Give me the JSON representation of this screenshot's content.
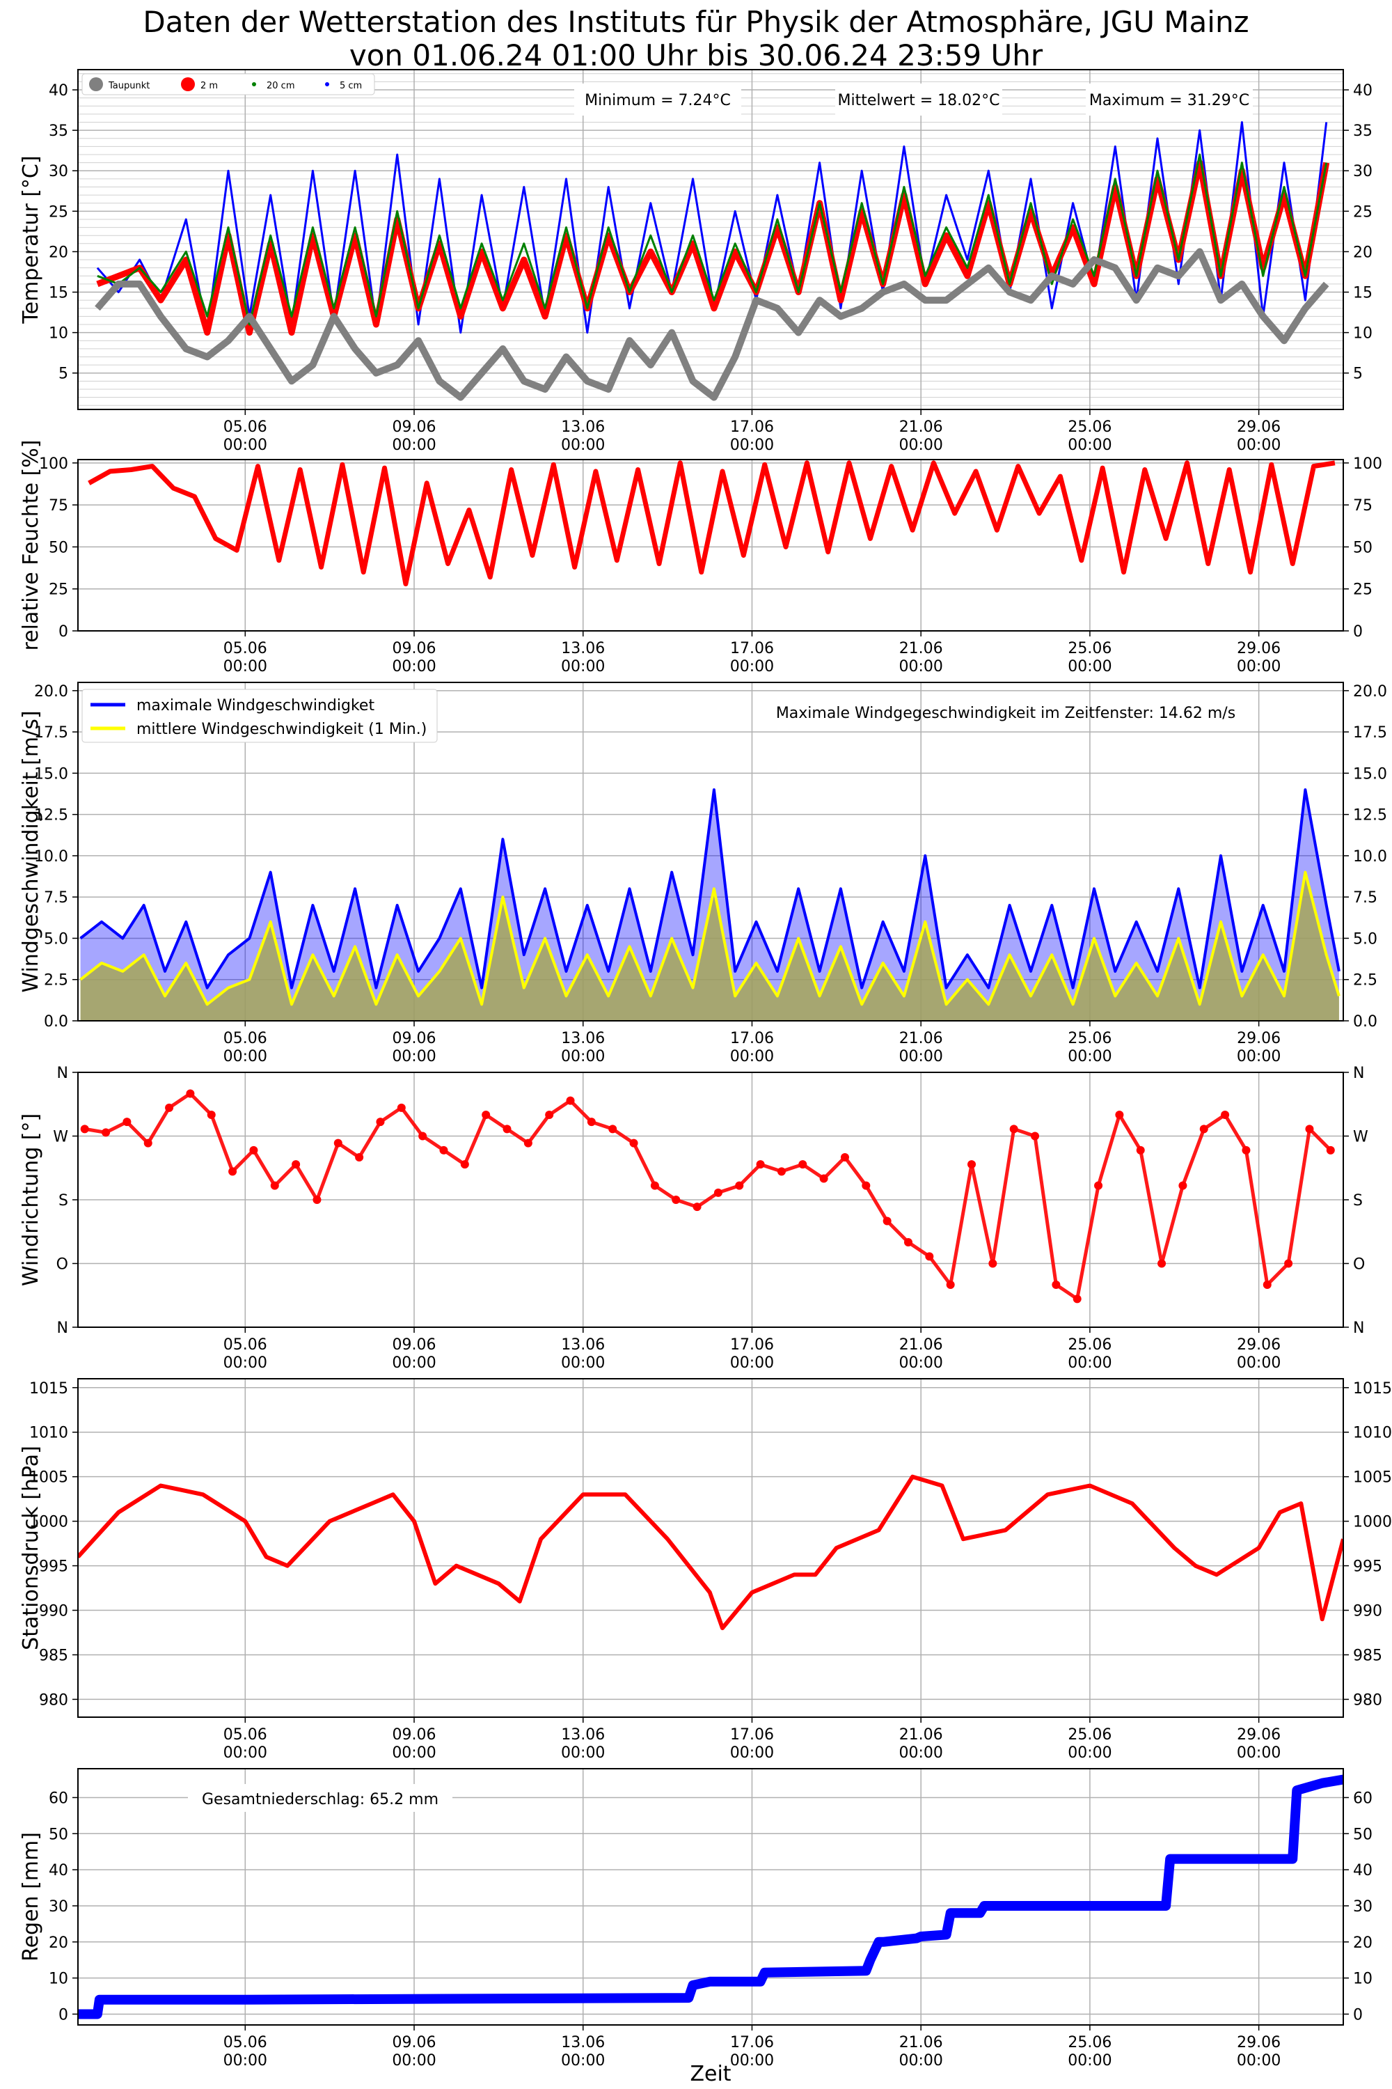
{
  "title": {
    "line1": "Daten der Wetterstation des Instituts für Physik der Atmosphäre, JGU Mainz",
    "line2": "von 01.06.24 01:00 Uhr bis 30.06.24 23:59 Uhr"
  },
  "xlabel": "Zeit",
  "x_ticks": [
    "05.06\n00:00",
    "09.06\n00:00",
    "13.06\n00:00",
    "17.06\n00:00",
    "21.06\n00:00",
    "25.06\n00:00",
    "29.06\n00:00"
  ],
  "x_tick_days": [
    4,
    8,
    12,
    16,
    20,
    24,
    28
  ],
  "x_range_days": [
    0.04,
    30.0
  ],
  "chart_data": [
    {
      "id": "temperature",
      "type": "scatter",
      "ylabel": "Temperatur [°C]",
      "ylim": [
        0.5,
        42.5
      ],
      "yticks": [
        5,
        10,
        15,
        20,
        25,
        30,
        35,
        40
      ],
      "legend": [
        "Taupunkt",
        "2 m",
        "20 cm",
        "5 cm"
      ],
      "annotations": [
        "Minimum = 7.24°C",
        "Mittelwert = 18.02°C",
        "Maximum = 31.29°C"
      ],
      "x_days": [
        0.5,
        1,
        1.5,
        2,
        2.6,
        3.1,
        3.6,
        4.1,
        4.6,
        5.1,
        5.6,
        6.1,
        6.6,
        7.1,
        7.6,
        8.1,
        8.6,
        9.1,
        9.6,
        10.1,
        10.6,
        11.1,
        11.6,
        12.1,
        12.6,
        13.1,
        13.6,
        14.1,
        14.6,
        15.1,
        15.6,
        16.1,
        16.6,
        17.1,
        17.6,
        18.1,
        18.6,
        19.1,
        19.6,
        20.1,
        20.6,
        21.1,
        21.6,
        22.1,
        22.6,
        23.1,
        23.6,
        24.1,
        24.6,
        25.1,
        25.6,
        26.1,
        26.6,
        27.1,
        27.6,
        28.1,
        28.6,
        29.1,
        29.6
      ],
      "series": [
        {
          "name": "5 cm",
          "color": "#0000ff",
          "values": [
            18,
            15,
            19,
            14,
            24,
            10,
            30,
            12,
            27,
            11,
            30,
            12,
            30,
            11,
            32,
            11,
            29,
            10,
            27,
            13,
            28,
            12,
            29,
            10,
            28,
            13,
            26,
            15,
            29,
            13,
            25,
            14,
            27,
            15,
            31,
            13,
            30,
            15,
            33,
            16,
            27,
            19,
            30,
            15,
            29,
            13,
            26,
            16,
            33,
            14,
            34,
            16,
            35,
            14,
            36,
            12,
            31,
            14,
            36
          ]
        },
        {
          "name": "2 m",
          "color": "#ff0000",
          "values": [
            16,
            17,
            18,
            14,
            19,
            10,
            22,
            10,
            21,
            10,
            22,
            12,
            22,
            11,
            24,
            13,
            21,
            12,
            20,
            13,
            19,
            12,
            22,
            13,
            22,
            15,
            20,
            15,
            21,
            13,
            20,
            15,
            23,
            15,
            26,
            14,
            25,
            16,
            27,
            16,
            22,
            17,
            26,
            16,
            25,
            17,
            23,
            16,
            28,
            17,
            29,
            19,
            31,
            17,
            30,
            18,
            27,
            17,
            31
          ]
        },
        {
          "name": "20 cm",
          "color": "#008000",
          "values": [
            17,
            16,
            18,
            15,
            20,
            12,
            23,
            11,
            22,
            12,
            23,
            13,
            23,
            12,
            25,
            13,
            22,
            13,
            21,
            14,
            21,
            13,
            23,
            13,
            23,
            15,
            22,
            15,
            22,
            14,
            21,
            15,
            24,
            15,
            26,
            15,
            26,
            16,
            28,
            17,
            23,
            18,
            27,
            16,
            26,
            16,
            24,
            17,
            29,
            17,
            30,
            19,
            32,
            17,
            31,
            17,
            28,
            17,
            31
          ]
        },
        {
          "name": "Taupunkt",
          "color": "#808080",
          "values": [
            13,
            16,
            16,
            12,
            8,
            7,
            9,
            12,
            8,
            4,
            6,
            12,
            8,
            5,
            6,
            9,
            4,
            2,
            5,
            8,
            4,
            3,
            7,
            4,
            3,
            9,
            6,
            10,
            4,
            2,
            7,
            14,
            13,
            10,
            14,
            12,
            13,
            15,
            16,
            14,
            14,
            16,
            18,
            15,
            14,
            17,
            16,
            19,
            18,
            14,
            18,
            17,
            20,
            14,
            16,
            12,
            9,
            13,
            16
          ]
        }
      ]
    },
    {
      "id": "humidity",
      "type": "scatter",
      "ylabel": "relative Feuchte [%]",
      "ylim": [
        0,
        102
      ],
      "yticks": [
        0,
        25,
        50,
        75,
        100
      ],
      "x_days": [
        0.3,
        0.8,
        1.3,
        1.8,
        2.3,
        2.8,
        3.3,
        3.8,
        4.3,
        4.8,
        5.3,
        5.8,
        6.3,
        6.8,
        7.3,
        7.8,
        8.3,
        8.8,
        9.3,
        9.8,
        10.3,
        10.8,
        11.3,
        11.8,
        12.3,
        12.8,
        13.3,
        13.8,
        14.3,
        14.8,
        15.3,
        15.8,
        16.3,
        16.8,
        17.3,
        17.8,
        18.3,
        18.8,
        19.3,
        19.8,
        20.3,
        20.8,
        21.3,
        21.8,
        22.3,
        22.8,
        23.3,
        23.8,
        24.3,
        24.8,
        25.3,
        25.8,
        26.3,
        26.8,
        27.3,
        27.8,
        28.3,
        28.8,
        29.3,
        29.8
      ],
      "series": [
        {
          "name": "",
          "color": "#ff0000",
          "values": [
            88,
            95,
            96,
            98,
            85,
            80,
            55,
            48,
            98,
            42,
            96,
            38,
            99,
            35,
            97,
            28,
            88,
            40,
            72,
            32,
            96,
            45,
            99,
            38,
            95,
            42,
            96,
            40,
            100,
            35,
            95,
            45,
            99,
            50,
            100,
            47,
            100,
            55,
            98,
            60,
            100,
            70,
            95,
            60,
            98,
            70,
            92,
            42,
            97,
            35,
            96,
            55,
            100,
            40,
            96,
            35,
            99,
            40,
            98,
            100
          ]
        }
      ]
    },
    {
      "id": "wind_speed",
      "type": "line",
      "ylabel": "Windgeschwindigkeit [m/s]",
      "ylim": [
        0,
        20.5
      ],
      "yticks": [
        0.0,
        2.5,
        5.0,
        7.5,
        10.0,
        12.5,
        15.0,
        17.5,
        20.0
      ],
      "legend": [
        "maximale Windgeschwindigket",
        "mittlere Windgeschwindigkeit (1 Min.)"
      ],
      "annotation": "Maximale Windgegeschwindigkeit im Zeitfenster: 14.62 m/s",
      "x_days": [
        0.1,
        0.6,
        1.1,
        1.6,
        2.1,
        2.6,
        3.1,
        3.6,
        4.1,
        4.6,
        5.1,
        5.6,
        6.1,
        6.6,
        7.1,
        7.6,
        8.1,
        8.6,
        9.1,
        9.6,
        10.1,
        10.6,
        11.1,
        11.6,
        12.1,
        12.6,
        13.1,
        13.6,
        14.1,
        14.6,
        15.1,
        15.6,
        16.1,
        16.6,
        17.1,
        17.6,
        18.1,
        18.6,
        19.1,
        19.6,
        20.1,
        20.6,
        21.1,
        21.6,
        22.1,
        22.6,
        23.1,
        23.6,
        24.1,
        24.6,
        25.1,
        25.6,
        26.1,
        26.6,
        27.1,
        27.6,
        28.1,
        28.6,
        29.1,
        29.6,
        29.9
      ],
      "series": [
        {
          "name": "maximale Windgeschwindigket",
          "color": "#0000ff",
          "values": [
            5,
            6,
            5,
            7,
            3,
            6,
            2,
            4,
            5,
            9,
            2,
            7,
            3,
            8,
            2,
            7,
            3,
            5,
            8,
            2,
            11,
            4,
            8,
            3,
            7,
            3,
            8,
            3,
            9,
            4,
            14,
            3,
            6,
            3,
            8,
            3,
            8,
            2,
            6,
            3,
            10,
            2,
            4,
            2,
            7,
            3,
            7,
            2,
            8,
            3,
            6,
            3,
            8,
            2,
            10,
            3,
            7,
            3,
            14,
            7,
            3
          ]
        },
        {
          "name": "mittlere Windgeschwindigkeit (1 Min.)",
          "color": "#ffff00",
          "values": [
            2.5,
            3.5,
            3,
            4,
            1.5,
            3.5,
            1,
            2,
            2.5,
            6,
            1,
            4,
            1.5,
            4.5,
            1,
            4,
            1.5,
            3,
            5,
            1,
            7.5,
            2,
            5,
            1.5,
            4,
            1.5,
            4.5,
            1.5,
            5,
            2,
            8,
            1.5,
            3.5,
            1.5,
            5,
            1.5,
            4.5,
            1,
            3.5,
            1.5,
            6,
            1,
            2.5,
            1,
            4,
            1.5,
            4,
            1,
            5,
            1.5,
            3.5,
            1.5,
            5,
            1,
            6,
            1.5,
            4,
            1.5,
            9,
            4,
            1.5
          ]
        }
      ]
    },
    {
      "id": "wind_direction",
      "type": "scatter",
      "ylabel": "Windrichtung [°]",
      "ylim": [
        0,
        360
      ],
      "yticks_deg": [
        0,
        90,
        180,
        270,
        360
      ],
      "yticks": [
        "N",
        "O",
        "S",
        "W",
        "N"
      ],
      "x_days": [
        0.2,
        0.7,
        1.2,
        1.7,
        2.2,
        2.7,
        3.2,
        3.7,
        4.2,
        4.7,
        5.2,
        5.7,
        6.2,
        6.7,
        7.2,
        7.7,
        8.2,
        8.7,
        9.2,
        9.7,
        10.2,
        10.7,
        11.2,
        11.7,
        12.2,
        12.7,
        13.2,
        13.7,
        14.2,
        14.7,
        15.2,
        15.7,
        16.2,
        16.7,
        17.2,
        17.7,
        18.2,
        18.7,
        19.2,
        19.7,
        20.2,
        20.7,
        21.2,
        21.7,
        22.2,
        22.7,
        23.2,
        23.7,
        24.2,
        24.7,
        25.2,
        25.7,
        26.2,
        26.7,
        27.2,
        27.7,
        28.2,
        28.7,
        29.2,
        29.7
      ],
      "series": [
        {
          "name": "",
          "color": "#ff0000",
          "values": [
            280,
            275,
            290,
            260,
            310,
            330,
            300,
            220,
            250,
            200,
            230,
            180,
            260,
            240,
            290,
            310,
            270,
            250,
            230,
            300,
            280,
            260,
            300,
            320,
            290,
            280,
            260,
            200,
            180,
            170,
            190,
            200,
            230,
            220,
            230,
            210,
            240,
            200,
            150,
            120,
            100,
            60,
            230,
            90,
            280,
            270,
            60,
            40,
            200,
            300,
            250,
            90,
            200,
            280,
            300,
            250,
            60,
            90,
            280,
            250
          ]
        }
      ]
    },
    {
      "id": "pressure",
      "type": "line",
      "ylabel": "Stationsdruck [hPa]",
      "ylim": [
        978,
        1016
      ],
      "yticks": [
        980,
        985,
        990,
        995,
        1000,
        1005,
        1010,
        1015
      ],
      "x_days": [
        0.04,
        1,
        2,
        3,
        4,
        4.5,
        5,
        6,
        7,
        7.5,
        8,
        8.5,
        9,
        10,
        10.5,
        11,
        12,
        12.5,
        13,
        14,
        15,
        15.3,
        16,
        17,
        17.5,
        18,
        19,
        19.8,
        20.5,
        21,
        22,
        23,
        24,
        25,
        26,
        26.5,
        27,
        28,
        28.5,
        29,
        29.5,
        30
      ],
      "series": [
        {
          "name": "",
          "color": "#ff0000",
          "values": [
            996,
            1001,
            1004,
            1003,
            1000,
            996,
            995,
            1000,
            1002,
            1003,
            1000,
            993,
            995,
            993,
            991,
            998,
            1003,
            1003,
            1003,
            998,
            992,
            988,
            992,
            994,
            994,
            997,
            999,
            1005,
            1004,
            998,
            999,
            1003,
            1004,
            1002,
            997,
            995,
            994,
            997,
            1001,
            1002,
            989,
            998
          ]
        }
      ]
    },
    {
      "id": "precipitation",
      "type": "line",
      "ylabel": "Regen [mm]",
      "ylim": [
        -3,
        68
      ],
      "yticks": [
        0,
        10,
        20,
        30,
        40,
        50,
        60
      ],
      "annotation": "Gesamtniederschlag: 65.2 mm",
      "x_days": [
        0.04,
        0.5,
        0.55,
        4,
        14.5,
        14.6,
        15,
        16.2,
        16.3,
        18.7,
        18.8,
        19,
        19.1,
        19.9,
        20.0,
        20.6,
        20.7,
        21.4,
        21.5,
        25.8,
        25.9,
        28.8,
        28.9,
        29.5,
        30
      ],
      "series": [
        {
          "name": "",
          "color": "#0000ff",
          "values": [
            0,
            0,
            4,
            4,
            4.5,
            8,
            9,
            9,
            11.5,
            12,
            15,
            20,
            20,
            21,
            21.5,
            22,
            28,
            28,
            30,
            30,
            43,
            43,
            62,
            64,
            65
          ]
        }
      ]
    }
  ]
}
